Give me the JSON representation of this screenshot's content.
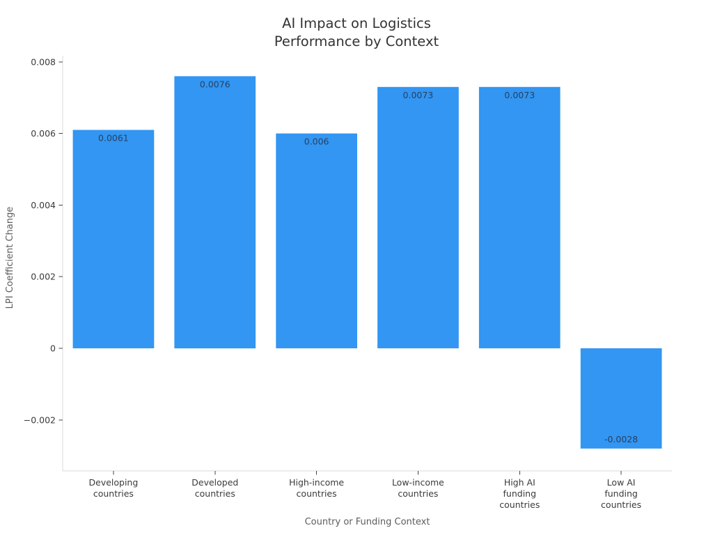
{
  "chart_data": {
    "type": "bar",
    "title_lines": [
      "AI Impact on Logistics",
      "Performance by Context"
    ],
    "xlabel": "Country or Funding Context",
    "ylabel": "LPI Coefficient Change",
    "categories": [
      "Developing\ncountries",
      "Developed\ncountries",
      "High-income\ncountries",
      "Low-income\ncountries",
      "High AI\nfunding\ncountries",
      "Low AI\nfunding\ncountries"
    ],
    "values": [
      0.0061,
      0.0076,
      0.006,
      0.0073,
      0.0073,
      -0.0028
    ],
    "value_labels": [
      "0.0061",
      "0.0076",
      "0.006",
      "0.0073",
      "0.0073",
      "-0.0028"
    ],
    "yticks": [
      {
        "v": -0.002,
        "label": "−0.002"
      },
      {
        "v": 0,
        "label": "0"
      },
      {
        "v": 0.002,
        "label": "0.002"
      },
      {
        "v": 0.004,
        "label": "0.004"
      },
      {
        "v": 0.006,
        "label": "0.006"
      },
      {
        "v": 0.008,
        "label": "0.008"
      }
    ],
    "ylim": [
      -0.003424,
      0.008171
    ],
    "bar_color": "#3296f2",
    "grid": false,
    "legend": "none",
    "background": "#ffffff"
  },
  "colors": {
    "title": "#333333",
    "axis_line": "#d8d8d8",
    "tick_mark": "#444444",
    "tick_label": "#3a3a3a",
    "axis_title": "#5c5c5c",
    "bar_label": "#2a3f5f"
  }
}
